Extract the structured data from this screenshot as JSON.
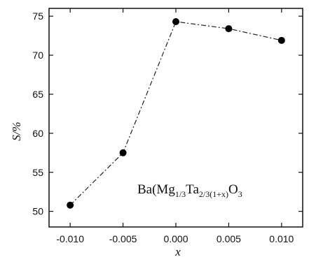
{
  "chart_data": {
    "type": "line",
    "xlabel": "x",
    "ylabel": "S/%",
    "xlim": [
      -0.012,
      0.012
    ],
    "ylim": [
      48,
      76
    ],
    "xticks": [
      -0.01,
      -0.005,
      0.0,
      0.005,
      0.01
    ],
    "xtick_labels": [
      "-0.010",
      "-0.005",
      "0.000",
      "0.005",
      "0.010"
    ],
    "yticks": [
      50,
      55,
      60,
      65,
      70,
      75
    ],
    "ytick_labels": [
      "50",
      "55",
      "60",
      "65",
      "70",
      "75"
    ],
    "grid": false,
    "line_style": "dash-dot",
    "marker": "filled-circle",
    "annotation": {
      "base": "Ba(Mg",
      "sub1": "1/3",
      "mid": "Ta",
      "sub2": "2/3(1+x)",
      "end": "O",
      "sub3": "3"
    },
    "series": [
      {
        "x": [
          -0.01,
          -0.005,
          0.0,
          0.005,
          0.01
        ],
        "y": [
          50.8,
          57.5,
          74.3,
          73.4,
          71.9
        ]
      }
    ]
  }
}
